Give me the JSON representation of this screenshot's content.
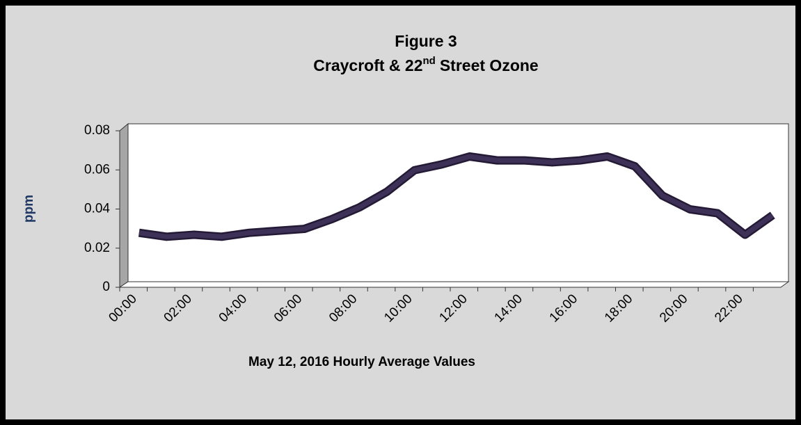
{
  "chart_data": {
    "type": "line",
    "title": "Figure 3",
    "subtitle": {
      "before": "Craycroft & 22",
      "sup": "nd",
      "after": "Street Ozone"
    },
    "x_label": "May 12, 2016 Hourly Average Values",
    "y_label": "ppm",
    "categories": [
      "00:00",
      null,
      "02:00",
      null,
      "04:00",
      null,
      "06:00",
      null,
      "08:00",
      null,
      "10:00",
      null,
      "12:00",
      null,
      "14:00",
      null,
      "16:00",
      null,
      "18:00",
      null,
      "20:00",
      null,
      "22:00",
      null
    ],
    "series": [
      {
        "color": "#3d3157",
        "values": [
          0.025,
          0.023,
          0.024,
          0.023,
          0.025,
          0.026,
          0.027,
          0.032,
          0.038,
          0.046,
          0.057,
          0.06,
          0.064,
          0.062,
          0.062,
          0.061,
          0.062,
          0.064,
          0.059,
          0.044,
          0.037,
          0.035,
          0.024,
          0.034
        ]
      }
    ],
    "ylim": [
      0,
      0.08
    ],
    "yticks": [
      0,
      0.02,
      0.04,
      0.06,
      0.08
    ],
    "grid": false
  }
}
